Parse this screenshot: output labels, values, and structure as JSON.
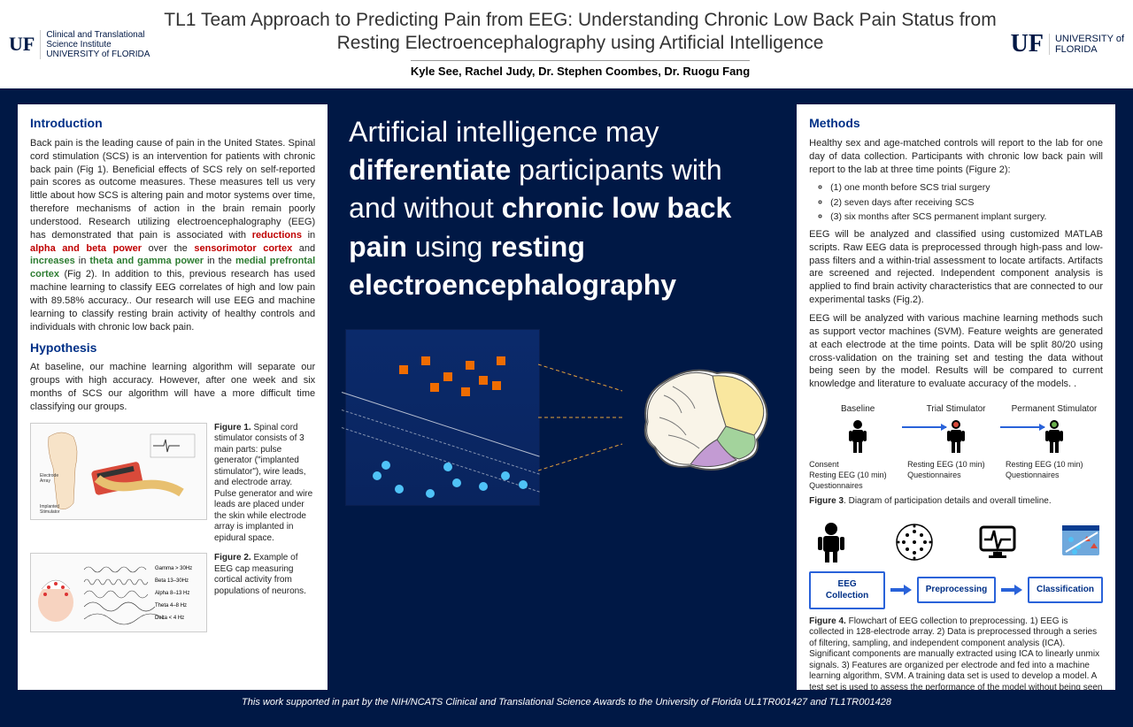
{
  "header": {
    "logo_left_mark": "UF",
    "logo_left_sub": "Clinical and Translational\nScience Institute\nUNIVERSITY of FLORIDA",
    "logo_right_mark": "UF",
    "logo_right_sub": "UNIVERSITY of\nFLORIDA",
    "title": "TL1 Team Approach to Predicting Pain from EEG: Understanding Chronic Low Back Pain Status from Resting Electroencephalography using Artificial Intelligence",
    "authors": "Kyle See, Rachel Judy, Dr. Stephen Coombes, Dr. Ruogu Fang"
  },
  "colors": {
    "page_bg": "#001845",
    "panel_bg": "#ffffff",
    "heading": "#003087",
    "accent_blue": "#2962d9",
    "text_red": "#c00000",
    "text_green": "#2e7d32",
    "scatter_bg_top": "#0b2a6b",
    "scatter_bg_bot": "#09245e",
    "scatter_cyan": "#4fc3f7",
    "scatter_orange": "#ef6c00",
    "brain_frontal": "#f9e79f",
    "brain_parietal": "#a3d39c",
    "brain_occipital": "#c39bd3",
    "brain_temporal": "#f5b7b1"
  },
  "left": {
    "intro_h": "Introduction",
    "intro_p1a": "Back pain is the leading cause of pain in the United States. Spinal cord stimulation (SCS) is an intervention for patients with chronic back pain (Fig 1). Beneficial effects of SCS rely on self-reported pain scores as outcome measures. These measures tell us very little about how SCS is altering pain and motor systems over time, therefore mechanisms of action in the brain remain poorly understood. Research utilizing electroencephalography (EEG) has demonstrated that pain is associated with ",
    "intro_red1": "reductions",
    "intro_p1b": " in ",
    "intro_red2": "alpha and beta power",
    "intro_p1c": " over the ",
    "intro_red3": "sensorimotor cortex",
    "intro_p1d": "  and ",
    "intro_grn1": "increases",
    "intro_p1e": " in ",
    "intro_grn2": "theta and gamma power",
    "intro_p1f": " in the ",
    "intro_grn3": "medial prefrontal cortex",
    "intro_p1g": " (Fig 2). In addition to this, previous research has used machine learning to classify EEG correlates of high and low pain with 89.58% accuracy.. Our research will use EEG and machine learning to classify resting brain activity of healthy controls and individuals with chronic low back pain.",
    "hyp_h": "Hypothesis",
    "hyp_p": "At baseline, our machine learning algorithm will separate our groups with high accuracy. However, after one week and six months of SCS our algorithm will have a more difficult time classifying our groups.",
    "fig1_b": "Figure 1.",
    "fig1": " Spinal cord stimulator consists of 3 main parts: pulse generator (\"implanted stimulator\"), wire leads, and electrode array.  Pulse generator and wire leads are placed under the skin while electrode array is implanted in epidural space.",
    "fig2_b": "Figure 2.",
    "fig2": " Example of EEG cap measuring cortical activity from populations of neurons."
  },
  "center": {
    "hero_pre": "Artificial intelligence may ",
    "hero_b1": "differentiate",
    "hero_mid1": " participants with and without ",
    "hero_b2": "chronic low back pain",
    "hero_mid2": " using ",
    "hero_b3": "resting electroencephalography",
    "scatter": {
      "cyan_points": [
        [
          30,
          160
        ],
        [
          55,
          175
        ],
        [
          90,
          180
        ],
        [
          120,
          168
        ],
        [
          150,
          172
        ],
        [
          175,
          160
        ],
        [
          195,
          170
        ],
        [
          40,
          148
        ],
        [
          110,
          150
        ]
      ],
      "orange_points": [
        [
          60,
          40
        ],
        [
          85,
          30
        ],
        [
          110,
          48
        ],
        [
          135,
          35
        ],
        [
          150,
          52
        ],
        [
          170,
          30
        ],
        [
          95,
          60
        ],
        [
          130,
          65
        ],
        [
          165,
          58
        ]
      ]
    }
  },
  "right": {
    "meth_h": "Methods",
    "meth_p1": "Healthy sex and age-matched controls will report to the lab for one day of data collection. Participants with chronic low back pain will report to the lab at three time points (Figure 2):",
    "tp1": "(1) one month before SCS trial surgery",
    "tp2": "(2) seven days after receiving SCS",
    "tp3": "(3) six months after SCS permanent implant surgery.",
    "meth_p2": "EEG will be analyzed and classified using customized MATLAB scripts. Raw EEG data is preprocessed through high-pass and low-pass filters and a within-trial assessment to locate artifacts. Artifacts are screened and rejected. Independent component analysis is applied to find brain activity characteristics that are connected to our experimental tasks (Fig.2).",
    "meth_p3": "EEG will be analyzed with various machine learning methods such as support vector machines (SVM). Feature weights are generated at each electrode at the time points. Data will be split 80/20 using cross-validation on the training set and testing the data without being seen by the model. Results will be compared to current knowledge and literature to evaluate accuracy of the models. .",
    "timeline": {
      "n1_lbl": "Baseline",
      "n2_lbl": "Trial Stimulator",
      "n3_lbl": "Permanent Stimulator",
      "n1_txt": "Consent\nResting EEG (10 min)\nQuestionnaires",
      "n2_txt": "Resting EEG (10 min)\nQuestionnaires",
      "n3_txt": "Resting EEG (10 min)\nQuestionnaires"
    },
    "fig3_b": "Figure 3",
    "fig3": ". Diagram of participation details and overall timeline.",
    "flow_labels": [
      "EEG Collection",
      "Preprocessing",
      "Classification"
    ],
    "fig4_b": "Figure 4.",
    "fig4": " Flowchart of EEG collection to preprocessing. 1) EEG is collected in 128-electrode array. 2) Data is preprocessed through a series of filtering, sampling, and independent component analysis (ICA). Significant components are manually extracted using ICA to linearly unmix signals.  3) Features are organized per electrode and fed into a machine learning algorithm, SVM. A training data set is used to develop a model. A test set is used to assess the performance of the model without being seen beforehand."
  },
  "footer": "This work supported in part by the NIH/NCATS Clinical and Translational Science Awards to the University of Florida UL1TR001427 and TL1TR001428"
}
